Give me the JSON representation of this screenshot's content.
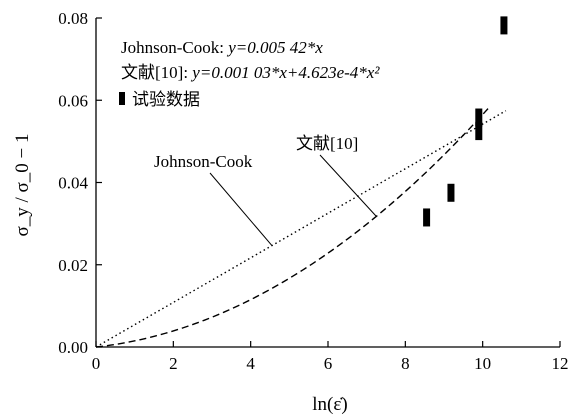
{
  "chart_data": {
    "type": "line",
    "xlabel": "ln(ε̇)",
    "ylabel": "σ_y / σ_0 − 1",
    "xlim": [
      0,
      12
    ],
    "ylim": [
      0,
      0.08
    ],
    "x_ticks": [
      0,
      2,
      4,
      6,
      8,
      10,
      12
    ],
    "x_tick_labels": [
      "0",
      "2",
      "4",
      "6",
      "8",
      "10",
      "12"
    ],
    "y_ticks": [
      0,
      0.02,
      0.04,
      0.06,
      0.08
    ],
    "y_tick_labels": [
      "0.00",
      "0.02",
      "0.04",
      "0.06",
      "0.08"
    ],
    "grid": false,
    "legend_position": "top-left",
    "equations": [
      {
        "label": "Johnson-Cook: ",
        "formula": "y=0.005 42*x"
      },
      {
        "label": "文献[10]: ",
        "formula": "y=0.001 03*x+4.623e-4*x²"
      }
    ],
    "series": [
      {
        "name": "Johnson-Cook",
        "kind": "line",
        "style": "dotted",
        "coef_linear": 0.00542,
        "coef_quadratic": 0,
        "x_range": [
          0,
          10.6
        ]
      },
      {
        "name": "文献[10]",
        "kind": "line",
        "style": "dashed",
        "coef_linear": 0.00103,
        "coef_quadratic": 0.0004623,
        "x_range": [
          0,
          10.2
        ]
      },
      {
        "name": "试验数据",
        "kind": "scatter",
        "marker": "bar",
        "points": [
          {
            "x": 8.55,
            "y": 0.0315
          },
          {
            "x": 9.18,
            "y": 0.0375
          },
          {
            "x": 9.9,
            "y": 0.0525
          },
          {
            "x": 9.9,
            "y": 0.0558
          },
          {
            "x": 10.55,
            "y": 0.0782
          }
        ]
      }
    ],
    "annotations": [
      {
        "text": "Johnson-Cook",
        "points_to_series": "Johnson-Cook",
        "arrow_x": 4.55
      },
      {
        "text": "文献[10]",
        "points_to_series": "文献[10]",
        "arrow_x": 7.25
      }
    ]
  }
}
